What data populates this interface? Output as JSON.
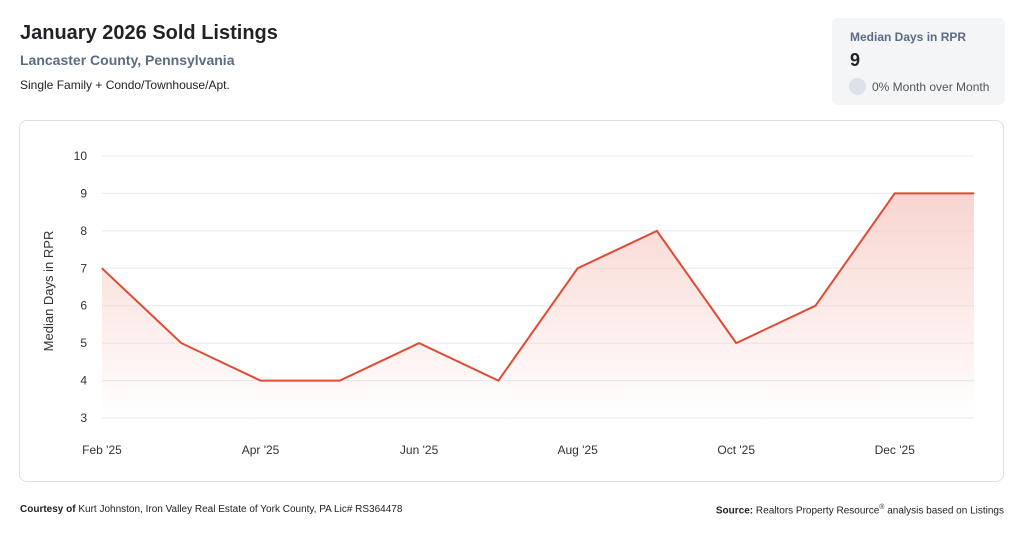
{
  "header": {
    "title": "January 2026 Sold Listings",
    "subtitle": "Lancaster County, Pennsylvania",
    "description": "Single Family + Condo/Townhouse/Apt."
  },
  "stat_card": {
    "label": "Median Days in RPR",
    "value": "9",
    "change": "0% Month over Month"
  },
  "footer": {
    "courtesy_label": "Courtesy of",
    "courtesy_text": "Kurt Johnston, Iron Valley Real Estate of York County, PA Lic# RS364478",
    "source_label": "Source:",
    "source_text_1": "Realtors Property Resource",
    "source_reg": "®",
    "source_text_2": " analysis based on Listings"
  },
  "colors": {
    "line": "#e04a34",
    "fill": "#f6c7c0",
    "grid": "#e6e8ec"
  },
  "chart_data": {
    "type": "area",
    "title": "",
    "xlabel": "",
    "ylabel": "Median Days in RPR",
    "x": [
      "Feb '25",
      "Mar '25",
      "Apr '25",
      "May '25",
      "Jun '25",
      "Jul '25",
      "Aug '25",
      "Sep '25",
      "Oct '25",
      "Nov '25",
      "Dec '25",
      "Jan '26"
    ],
    "x_tick_labels": [
      "Feb '25",
      "Apr '25",
      "Jun '25",
      "Aug '25",
      "Oct '25",
      "Dec '25"
    ],
    "y_ticks": [
      3,
      4,
      5,
      6,
      7,
      8,
      9,
      10
    ],
    "ylim": [
      3,
      10
    ],
    "series": [
      {
        "values": [
          7,
          5,
          4,
          4,
          5,
          4,
          7,
          8,
          5,
          6,
          9,
          9
        ]
      }
    ],
    "grid": true,
    "legend": "none"
  }
}
